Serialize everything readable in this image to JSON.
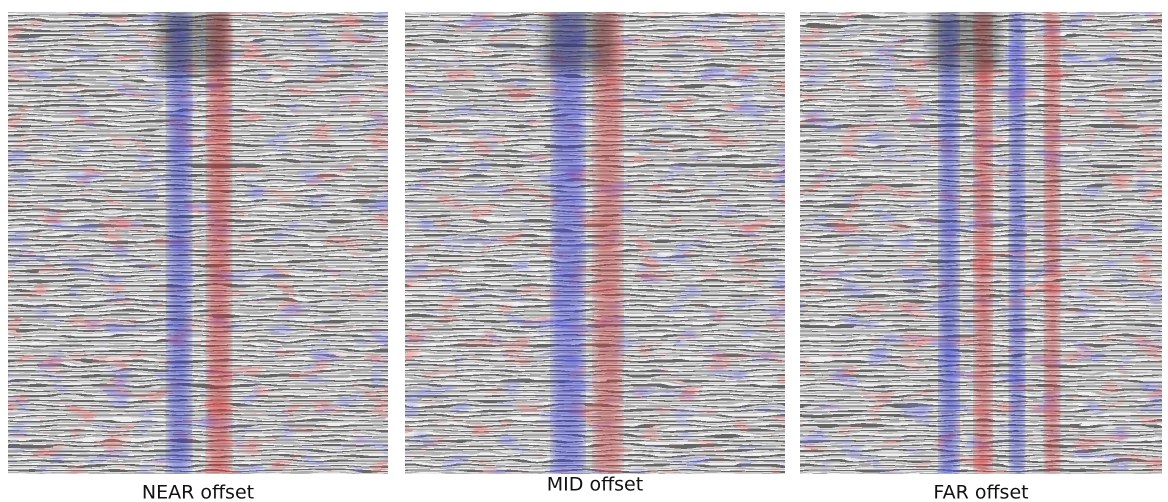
{
  "panels": [
    {
      "label": "NEAR offset"
    },
    {
      "label": "MID offset"
    },
    {
      "label": "FAR offset"
    }
  ]
}
